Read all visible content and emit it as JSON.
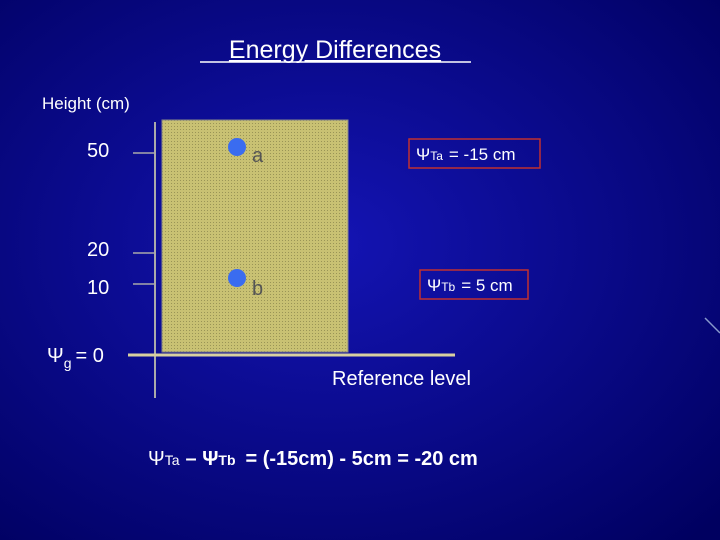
{
  "title": "Energy Differences",
  "axis": {
    "label": "Height (cm)",
    "ticks": [
      "50",
      "20",
      "10"
    ],
    "origin": {
      "symbol": "Ψ",
      "subscript": "g",
      "text": "= 0"
    }
  },
  "points": [
    {
      "label": "a",
      "annotation": {
        "symbol": "Ψ",
        "subscript": "Ta",
        "text": "= -15 cm"
      }
    },
    {
      "label": "b",
      "annotation": {
        "symbol": "Ψ",
        "subscript": "Tb",
        "text": "= 5 cm"
      }
    }
  ],
  "reference": "Reference level",
  "equation": {
    "parts": [
      "Ψ",
      "Ta",
      "– Ψ",
      "Tb",
      "= (-15cm) - 5cm = -20 cm"
    ]
  }
}
